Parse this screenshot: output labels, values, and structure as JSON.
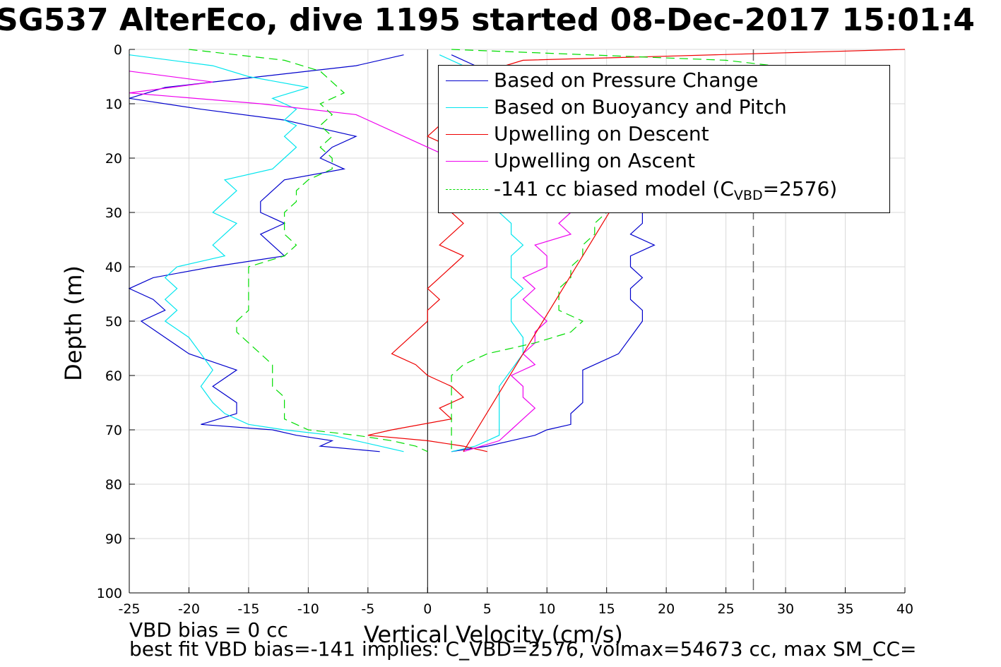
{
  "title": "SG537 AlterEco, dive 1195 started 08-Dec-2017 15:01:4",
  "chart_data": {
    "type": "line",
    "xlabel": "Vertical Velocity (cm/s)",
    "ylabel": "Depth (m)",
    "xlim": [
      -25,
      40
    ],
    "ylim": [
      0,
      100
    ],
    "y_reversed": true,
    "grid": true,
    "x_ticks": [
      "-25",
      "-20",
      "-15",
      "-10",
      "-5",
      "0",
      "5",
      "10",
      "15",
      "20",
      "25",
      "30",
      "35",
      "40"
    ],
    "y_ticks": [
      "0",
      "10",
      "20",
      "30",
      "40",
      "50",
      "60",
      "70",
      "80",
      "90",
      "100"
    ],
    "legend_position": "top-right",
    "legend": {
      "pressure": "Based on Pressure Change",
      "buoyancy": "Based on Buoyancy and Pitch",
      "up_descent": "Upwelling on Descent",
      "up_ascent": "Upwelling on Ascent",
      "model_prefix": "-141 cc biased model (C",
      "model_sub": "VBD",
      "model_suffix": "=2576)"
    },
    "colors": {
      "pressure": "#0000cc",
      "buoyancy": "#00e5ee",
      "up_descent": "#ee0000",
      "up_ascent": "#ee00ee",
      "model": "#00dd00",
      "zero_line": "#000000",
      "ref_line": "#666666"
    },
    "ref_vertical_x": 27.3,
    "fit_line": {
      "x": [
        3.0,
        15.5
      ],
      "y": [
        74,
        29
      ]
    },
    "series": [
      {
        "key": "pressure",
        "y": [
          1,
          3,
          5,
          7,
          9,
          11,
          13,
          14,
          16,
          18,
          20,
          22,
          24,
          26,
          28,
          30,
          32,
          34,
          36,
          38,
          40,
          42,
          44,
          46,
          48,
          50,
          53,
          56,
          59,
          62,
          65,
          67,
          69,
          70,
          71,
          72,
          73,
          74
        ],
        "descent": [
          -2,
          -6,
          -14,
          -22,
          -25,
          -19,
          -12,
          -10,
          -6,
          -8,
          -9,
          -7,
          -12,
          -13,
          -14,
          -14,
          -12,
          -14,
          -13,
          -12,
          -18,
          -23,
          -25,
          -23,
          -22,
          -24,
          -22,
          -20,
          -16,
          -18,
          -16,
          -16,
          -19,
          -13,
          -11,
          -8,
          -9,
          -4
        ],
        "ascent": [
          2,
          4,
          5,
          6,
          7,
          5,
          5,
          6,
          5,
          5,
          6,
          10,
          13,
          15,
          17,
          18,
          18,
          17,
          19,
          17,
          17,
          18,
          17,
          17,
          18,
          18,
          17,
          16,
          13,
          13,
          13,
          12,
          12,
          10,
          9,
          7,
          5,
          2
        ]
      },
      {
        "key": "buoyancy",
        "y": [
          1,
          3,
          5,
          7,
          9,
          11,
          13,
          14,
          16,
          18,
          20,
          22,
          24,
          26,
          28,
          30,
          32,
          34,
          36,
          38,
          40,
          42,
          44,
          46,
          48,
          50,
          53,
          56,
          59,
          62,
          65,
          67,
          69,
          70,
          71,
          72,
          73,
          74
        ],
        "descent": [
          -25,
          -18,
          -15,
          -10,
          -13,
          -11,
          -12,
          -11,
          -12,
          -11,
          -12,
          -13,
          -17,
          -16,
          -17,
          -18,
          -16,
          -17,
          -18,
          -17,
          -21,
          -22,
          -21,
          -22,
          -21,
          -22,
          -20,
          -19,
          -18,
          -19,
          -18,
          -17,
          -15,
          -12,
          -8,
          -6,
          -4,
          -2
        ],
        "ascent": [
          1,
          3,
          4,
          5,
          6,
          6,
          6,
          6,
          6,
          6,
          6,
          6,
          6,
          6,
          6,
          6,
          7,
          7,
          8,
          7,
          7,
          7,
          8,
          7,
          7,
          7,
          8,
          8,
          7,
          6,
          6,
          6,
          6,
          6,
          6,
          5,
          4,
          2
        ]
      },
      {
        "key": "up_descent",
        "y": [
          0,
          2,
          4,
          6,
          8,
          10,
          12,
          14,
          16,
          18,
          20,
          22,
          24,
          26,
          28,
          30,
          32,
          34,
          36,
          38,
          40,
          42,
          44,
          46,
          48,
          50,
          52,
          54,
          56,
          58,
          60,
          62,
          64,
          66,
          68,
          70,
          71,
          72,
          73,
          74
        ],
        "x": [
          40,
          8,
          5,
          4,
          3,
          2,
          1,
          1,
          0,
          2,
          3,
          3,
          4,
          3,
          2,
          2,
          3,
          2,
          1,
          3,
          2,
          1,
          0,
          1,
          0,
          0,
          -1,
          -2,
          -3,
          -1,
          0,
          2,
          3,
          1,
          2,
          -3,
          -5,
          0,
          3,
          5
        ]
      },
      {
        "key": "up_ascent",
        "y": [
          4,
          6,
          8,
          10,
          12,
          30,
          32,
          34,
          36,
          38,
          40,
          42,
          44,
          46,
          48,
          50,
          52,
          54,
          56,
          58,
          60,
          62,
          64,
          66,
          68,
          70,
          72,
          74
        ],
        "x": [
          -25,
          -18,
          -25,
          -14,
          -6,
          12,
          11,
          12,
          9,
          10,
          10,
          8,
          9,
          8,
          9,
          10,
          9,
          9,
          8,
          9,
          7,
          8,
          8,
          9,
          8,
          7,
          6,
          3
        ]
      },
      {
        "key": "model",
        "y": [
          0,
          2,
          4,
          6,
          8,
          10,
          12,
          14,
          16,
          18,
          20,
          22,
          24,
          26,
          28,
          30,
          32,
          34,
          36,
          38,
          40,
          42,
          44,
          46,
          48,
          50,
          52,
          54,
          56,
          58,
          60,
          62,
          64,
          66,
          68,
          70,
          71,
          72,
          73,
          74
        ],
        "descent": [
          -20,
          -12,
          -9,
          -8,
          -7,
          -9,
          -8,
          -9,
          -8,
          -9,
          -8,
          -8,
          -10,
          -11,
          -11,
          -12,
          -12,
          -12,
          -11,
          -12,
          -15,
          -15,
          -15,
          -15,
          -15,
          -16,
          -16,
          -15,
          -14,
          -13,
          -13,
          -13,
          -12,
          -12,
          -12,
          -10,
          -6,
          -3,
          -1,
          0
        ],
        "ascent": [
          2,
          25,
          33,
          30,
          22,
          15,
          14,
          14,
          15,
          15,
          15,
          14,
          14,
          14,
          15,
          15,
          14,
          14,
          13,
          13,
          12,
          12,
          11,
          11,
          11,
          13,
          12,
          9,
          5,
          3,
          2,
          2,
          2,
          2,
          2,
          2,
          2,
          2,
          2,
          2
        ]
      }
    ]
  },
  "footer": {
    "line1": "VBD bias = 0 cc",
    "line2": "best fit VBD bias=-141 implies: C_VBD=2576, volmax=54673 cc, max SM_CC="
  }
}
